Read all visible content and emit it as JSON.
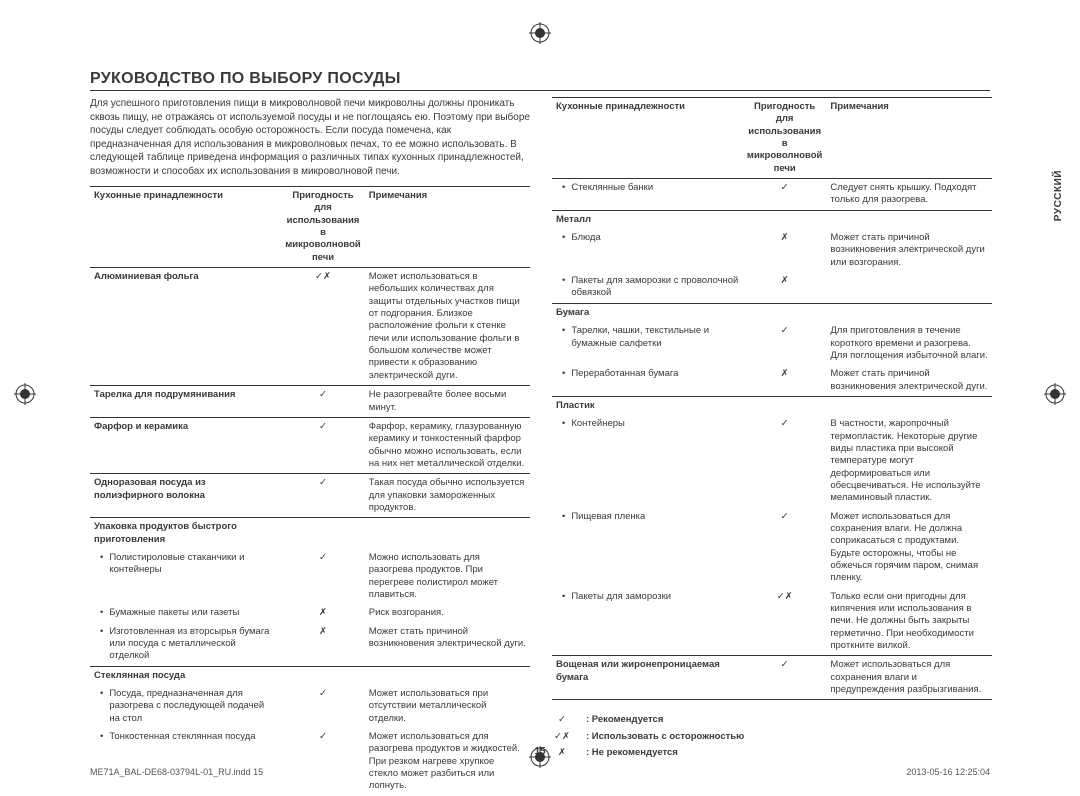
{
  "lang_tab": "РУССКИЙ",
  "title": "РУКОВОДСТВО ПО ВЫБОРУ ПОСУДЫ",
  "intro": "Для успешного приготовления пищи в микроволновой печи микроволны должны проникать сквозь пищу, не отражаясь от используемой посуды и не поглощаясь ею. Поэтому при выборе посуды следует соблюдать особую осторожность. Если посуда помечена, как предназначенная для использования в микроволновых печах, то ее можно использовать. В следующей таблице приведена информация о различных типах кухонных принадлежностей, возможности и способах их использования в микроволновой печи.",
  "headers": {
    "col_a": "Кухонные принадлежности",
    "col_b": "Пригодность для использования в микроволновой печи",
    "col_c": "Примечания"
  },
  "left_rows": [
    {
      "type": "item",
      "label": "Алюминиевая фольга",
      "safe": "✓✗",
      "note": "Может использоваться в небольших количествах для защиты отдельных участков пищи от подгорания. Близкое расположение фольги к стенке печи или использование фольги в большом количестве может привести к образованию электрической дуги.",
      "border": true
    },
    {
      "type": "item",
      "label": "Тарелка для подрумянивания",
      "safe": "✓",
      "note": "Не разогревайте более восьми минут.",
      "border": true
    },
    {
      "type": "item",
      "label": "Фарфор и керамика",
      "safe": "✓",
      "note": "Фарфор, керамику, глазурованную керамику и тонкостенный фарфор обычно можно использовать, если на них нет металлической отделки.",
      "border": true
    },
    {
      "type": "item",
      "label": "Одноразовая посуда из полиэфирного волокна",
      "safe": "✓",
      "note": "Такая посуда обычно используется для упаковки замороженных продуктов.",
      "border": true
    },
    {
      "type": "section",
      "label": "Упаковка продуктов быстрого приготовления",
      "border": true
    },
    {
      "type": "sub",
      "label": "Полистироловые стаканчики и контейнеры",
      "safe": "✓",
      "note": "Можно использовать для разогрева продуктов. При перегреве полистирол может плавиться."
    },
    {
      "type": "sub",
      "label": "Бумажные пакеты или газеты",
      "safe": "✗",
      "note": "Риск возгорания."
    },
    {
      "type": "sub",
      "label": "Изготовленная из вторсырья бумага или посуда с металлической отделкой",
      "safe": "✗",
      "note": "Может стать причиной возникновения электрической дуги."
    },
    {
      "type": "section",
      "label": "Стеклянная посуда",
      "border": true
    },
    {
      "type": "sub",
      "label": "Посуда, предназначенная для разогрева с последующей подачей на стол",
      "safe": "✓",
      "note": "Может использоваться при отсутствии металлической отделки."
    },
    {
      "type": "sub",
      "label": "Тонкостенная стеклянная посуда",
      "safe": "✓",
      "note": "Может использоваться для разогрева продуктов и жидкостей. При резком нагреве хрупкое стекло может разбиться или лопнуть."
    }
  ],
  "right_rows": [
    {
      "type": "sub",
      "label": "Стеклянные банки",
      "safe": "✓",
      "note": "Следует снять крышку. Подходят только для разогрева."
    },
    {
      "type": "section",
      "label": "Металл",
      "border": true
    },
    {
      "type": "sub",
      "label": "Блюда",
      "safe": "✗",
      "note": "Может стать причиной возникновения электрической дуги или возгорания."
    },
    {
      "type": "sub",
      "label": "Пакеты для заморозки с проволочной обвязкой",
      "safe": "✗",
      "note": ""
    },
    {
      "type": "section",
      "label": "Бумага",
      "border": true
    },
    {
      "type": "sub",
      "label": "Тарелки, чашки, текстильные и бумажные салфетки",
      "safe": "✓",
      "note": "Для приготовления в течение короткого времени и разогрева. Для поглощения избыточной влаги."
    },
    {
      "type": "sub",
      "label": "Переработанная бумага",
      "safe": "✗",
      "note": "Может стать причиной возникновения электрической дуги."
    },
    {
      "type": "section",
      "label": "Пластик",
      "border": true
    },
    {
      "type": "sub",
      "label": "Контейнеры",
      "safe": "✓",
      "note": "В частности, жаропрочный термопластик. Некоторые другие виды пластика при высокой температуре могут деформироваться или обесцвечиваться. Не используйте меламиновый пластик."
    },
    {
      "type": "sub",
      "label": "Пищевая пленка",
      "safe": "✓",
      "note": "Может использоваться для сохранения влаги. Не должна соприкасаться с продуктами. Будьте осторожны, чтобы не обжечься горячим паром, снимая пленку."
    },
    {
      "type": "sub",
      "label": "Пакеты для заморозки",
      "safe": "✓✗",
      "note": "Только если они пригодны для кипячения или использования в печи. Не должны быть закрыты герметично. При необходимости проткните вилкой."
    },
    {
      "type": "item",
      "label": "Вощеная или жиронепроницаемая бумага",
      "safe": "✓",
      "note": "Может использоваться для сохранения влаги и предупреждения разбрызгивания.",
      "border": true,
      "border_bottom": true
    }
  ],
  "legend": [
    {
      "sym": "✓",
      "text": ": Рекомендуется"
    },
    {
      "sym": "✓✗",
      "text": ": Использовать с осторожностью"
    },
    {
      "sym": "✗",
      "text": ": Не рекомендуется"
    }
  ],
  "page_num": "15",
  "footer_left": "ME71A_BAL-DE68-03794L-01_RU.indd   15",
  "footer_right": "2013-05-16   12:25:04"
}
